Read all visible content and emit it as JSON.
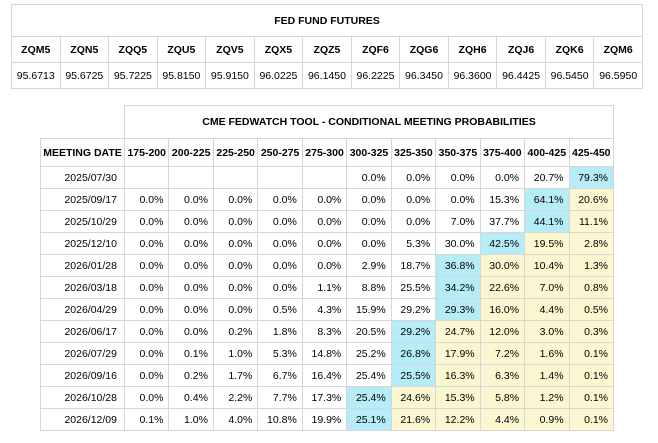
{
  "futures": {
    "title": "FED FUND FUTURES",
    "codes": [
      "ZQM5",
      "ZQN5",
      "ZQQ5",
      "ZQU5",
      "ZQV5",
      "ZQX5",
      "ZQZ5",
      "ZQF6",
      "ZQG6",
      "ZQH6",
      "ZQJ6",
      "ZQK6",
      "ZQM6"
    ],
    "prices": [
      "95.6713",
      "95.6725",
      "95.7225",
      "95.8150",
      "95.9150",
      "96.0225",
      "96.1450",
      "96.2225",
      "96.3450",
      "96.3600",
      "96.4425",
      "96.5450",
      "96.5950"
    ]
  },
  "probabilities": {
    "title": "CME FEDWATCH TOOL - CONDITIONAL MEETING PROBABILITIES",
    "date_header": "MEETING DATE",
    "ranges": [
      "175-200",
      "200-225",
      "225-250",
      "250-275",
      "275-300",
      "300-325",
      "325-350",
      "350-375",
      "375-400",
      "400-425",
      "425-450"
    ],
    "colors": {
      "max": "#b5ecf7",
      "above": "#fbf8d1"
    },
    "rows": [
      {
        "date": "2025/07/30",
        "values": [
          "",
          "",
          "",
          "",
          "",
          "0.0%",
          "0.0%",
          "0.0%",
          "0.0%",
          "20.7%",
          "79.3%"
        ],
        "hl": [
          "",
          "",
          "",
          "",
          "",
          "",
          "",
          "",
          "",
          "",
          "b"
        ]
      },
      {
        "date": "2025/09/17",
        "values": [
          "0.0%",
          "0.0%",
          "0.0%",
          "0.0%",
          "0.0%",
          "0.0%",
          "0.0%",
          "0.0%",
          "15.3%",
          "64.1%",
          "20.6%"
        ],
        "hl": [
          "",
          "",
          "",
          "",
          "",
          "",
          "",
          "",
          "",
          "b",
          "y"
        ]
      },
      {
        "date": "2025/10/29",
        "values": [
          "0.0%",
          "0.0%",
          "0.0%",
          "0.0%",
          "0.0%",
          "0.0%",
          "0.0%",
          "7.0%",
          "37.7%",
          "44.1%",
          "11.1%"
        ],
        "hl": [
          "",
          "",
          "",
          "",
          "",
          "",
          "",
          "",
          "",
          "b",
          "y"
        ]
      },
      {
        "date": "2025/12/10",
        "values": [
          "0.0%",
          "0.0%",
          "0.0%",
          "0.0%",
          "0.0%",
          "0.0%",
          "5.3%",
          "30.0%",
          "42.5%",
          "19.5%",
          "2.8%"
        ],
        "hl": [
          "",
          "",
          "",
          "",
          "",
          "",
          "",
          "",
          "b",
          "y",
          "y"
        ]
      },
      {
        "date": "2026/01/28",
        "values": [
          "0.0%",
          "0.0%",
          "0.0%",
          "0.0%",
          "0.0%",
          "2.9%",
          "18.7%",
          "36.8%",
          "30.0%",
          "10.4%",
          "1.3%"
        ],
        "hl": [
          "",
          "",
          "",
          "",
          "",
          "",
          "",
          "b",
          "y",
          "y",
          "y"
        ]
      },
      {
        "date": "2026/03/18",
        "values": [
          "0.0%",
          "0.0%",
          "0.0%",
          "0.0%",
          "1.1%",
          "8.8%",
          "25.5%",
          "34.2%",
          "22.6%",
          "7.0%",
          "0.8%"
        ],
        "hl": [
          "",
          "",
          "",
          "",
          "",
          "",
          "",
          "b",
          "y",
          "y",
          "y"
        ]
      },
      {
        "date": "2026/04/29",
        "values": [
          "0.0%",
          "0.0%",
          "0.0%",
          "0.5%",
          "4.3%",
          "15.9%",
          "29.2%",
          "29.3%",
          "16.0%",
          "4.4%",
          "0.5%"
        ],
        "hl": [
          "",
          "",
          "",
          "",
          "",
          "",
          "",
          "b",
          "y",
          "y",
          "y"
        ]
      },
      {
        "date": "2026/06/17",
        "values": [
          "0.0%",
          "0.0%",
          "0.2%",
          "1.8%",
          "8.3%",
          "20.5%",
          "29.2%",
          "24.7%",
          "12.0%",
          "3.0%",
          "0.3%"
        ],
        "hl": [
          "",
          "",
          "",
          "",
          "",
          "",
          "b",
          "y",
          "y",
          "y",
          "y"
        ]
      },
      {
        "date": "2026/07/29",
        "values": [
          "0.0%",
          "0.1%",
          "1.0%",
          "5.3%",
          "14.8%",
          "25.2%",
          "26.8%",
          "17.9%",
          "7.2%",
          "1.6%",
          "0.1%"
        ],
        "hl": [
          "",
          "",
          "",
          "",
          "",
          "",
          "b",
          "y",
          "y",
          "y",
          "y"
        ]
      },
      {
        "date": "2026/09/16",
        "values": [
          "0.0%",
          "0.2%",
          "1.7%",
          "6.7%",
          "16.4%",
          "25.4%",
          "25.5%",
          "16.3%",
          "6.3%",
          "1.4%",
          "0.1%"
        ],
        "hl": [
          "",
          "",
          "",
          "",
          "",
          "",
          "b",
          "y",
          "y",
          "y",
          "y"
        ]
      },
      {
        "date": "2026/10/28",
        "values": [
          "0.0%",
          "0.4%",
          "2.2%",
          "7.7%",
          "17.3%",
          "25.4%",
          "24.6%",
          "15.3%",
          "5.8%",
          "1.2%",
          "0.1%"
        ],
        "hl": [
          "",
          "",
          "",
          "",
          "",
          "b",
          "y",
          "y",
          "y",
          "y",
          "y"
        ]
      },
      {
        "date": "2026/12/09",
        "values": [
          "0.1%",
          "1.0%",
          "4.0%",
          "10.8%",
          "19.9%",
          "25.1%",
          "21.6%",
          "12.2%",
          "4.4%",
          "0.9%",
          "0.1%"
        ],
        "hl": [
          "",
          "",
          "",
          "",
          "",
          "b",
          "y",
          "y",
          "y",
          "y",
          "y"
        ]
      }
    ]
  }
}
